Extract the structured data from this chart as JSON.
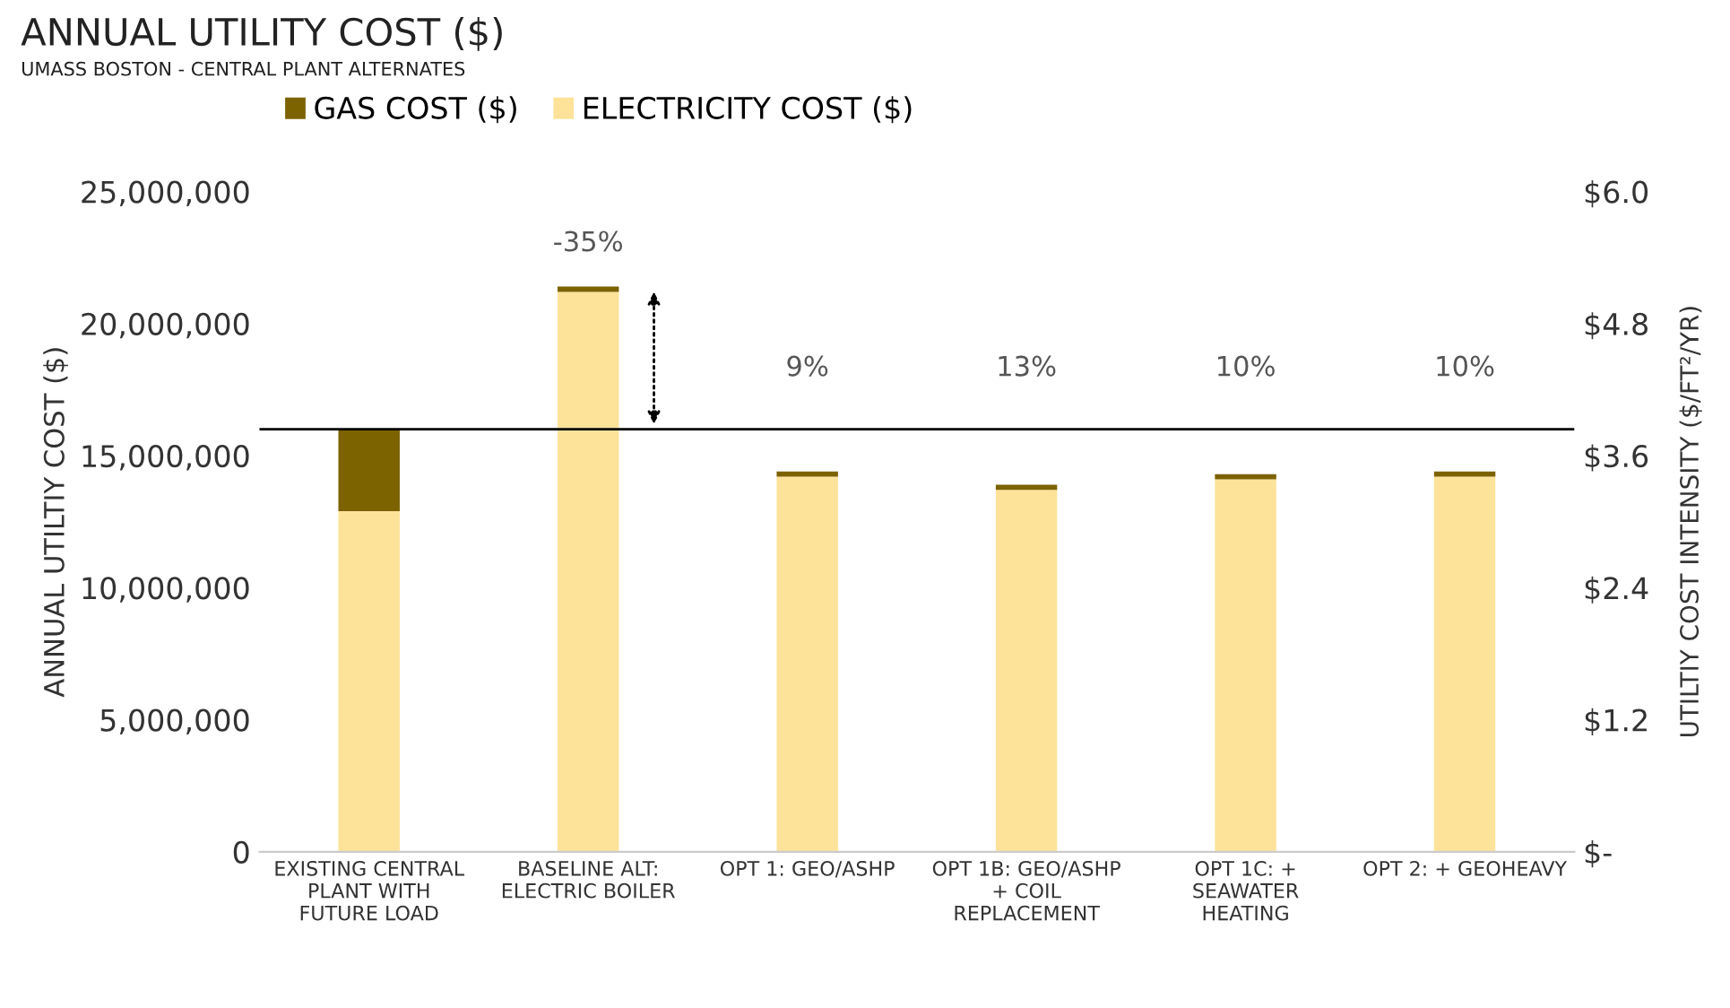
{
  "chart_data": {
    "type": "bar",
    "stacked": true,
    "title": "ANNUAL UTILITY COST ($)",
    "subtitle": "UMASS BOSTON - CENTRAL PLANT ALTERNATES",
    "ylabel": "ANNUAL UTILTIY COST ($)",
    "y2label": "UTILTIY COST INTENSITY ($/FT²/YR)",
    "categories": [
      "EXISTING CENTRAL\nPLANT WITH\nFUTURE LOAD",
      "BASELINE ALT:\nELECTRIC BOILER",
      "OPT 1: GEO/ASHP",
      "OPT 1B: GEO/ASHP\n+ COIL\nREPLACEMENT",
      "OPT 1C: +\nSEAWATER\nHEATING",
      "OPT 2: + GEOHEAVY"
    ],
    "series": [
      {
        "name": "ELECTRICITY COST ($)",
        "color": "#fde39a",
        "values": [
          12900000,
          21200000,
          14200000,
          13700000,
          14100000,
          14200000
        ]
      },
      {
        "name": "GAS COST ($)",
        "color": "#7d6200",
        "values": [
          3100000,
          200000,
          200000,
          200000,
          200000,
          200000
        ]
      }
    ],
    "ylim": [
      0,
      25000000
    ],
    "yticks": [
      {
        "value": 0,
        "label": "0"
      },
      {
        "value": 5000000,
        "label": "5,000,000"
      },
      {
        "value": 10000000,
        "label": "10,000,000"
      },
      {
        "value": 15000000,
        "label": "15,000,000"
      },
      {
        "value": 20000000,
        "label": "20,000,000"
      },
      {
        "value": 25000000,
        "label": "25,000,000"
      }
    ],
    "y2lim": [
      0,
      6
    ],
    "y2ticks": [
      {
        "value": 0,
        "label": "$-"
      },
      {
        "value": 1.2,
        "label": "$1.2"
      },
      {
        "value": 2.4,
        "label": "$2.4"
      },
      {
        "value": 3.6,
        "label": "$3.6"
      },
      {
        "value": 4.8,
        "label": "$4.8"
      },
      {
        "value": 6,
        "label": "$6.0"
      }
    ],
    "ref_lines": [
      {
        "axis": "y",
        "value": 16000000,
        "color": "#000000",
        "line_style": "solid"
      }
    ],
    "annotations": [
      "-35%",
      "9%",
      "13%",
      "10%",
      "10%"
    ],
    "legend": "top left",
    "grid": false
  }
}
